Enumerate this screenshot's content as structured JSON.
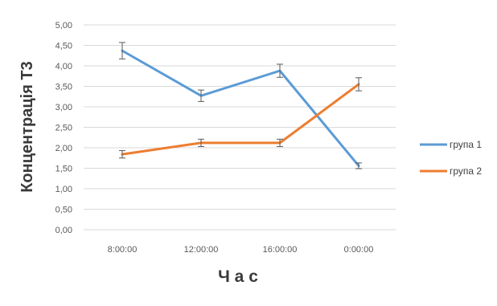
{
  "chart_data": {
    "type": "line",
    "title": "",
    "xlabel": "Ч а с",
    "ylabel": "Концентрація Т3",
    "categories": [
      "8:00:00",
      "12:00:00",
      "16:00:00",
      "0:00:00"
    ],
    "ylim": [
      0,
      5
    ],
    "yticks": [
      "0,00",
      "0,50",
      "1,00",
      "1,50",
      "2,00",
      "2,50",
      "3,00",
      "3,50",
      "4,00",
      "4,50",
      "5,00"
    ],
    "grid": true,
    "legend_position": "right",
    "series": [
      {
        "name": "група 1",
        "color": "#5b9bd5",
        "values": [
          4.37,
          3.27,
          3.88,
          1.56
        ],
        "errors": [
          0.2,
          0.14,
          0.16,
          0.07
        ]
      },
      {
        "name": "група 2",
        "color": "#ed7d31",
        "values": [
          1.84,
          2.12,
          2.12,
          3.55
        ],
        "errors": [
          0.09,
          0.09,
          0.09,
          0.16
        ]
      }
    ]
  }
}
